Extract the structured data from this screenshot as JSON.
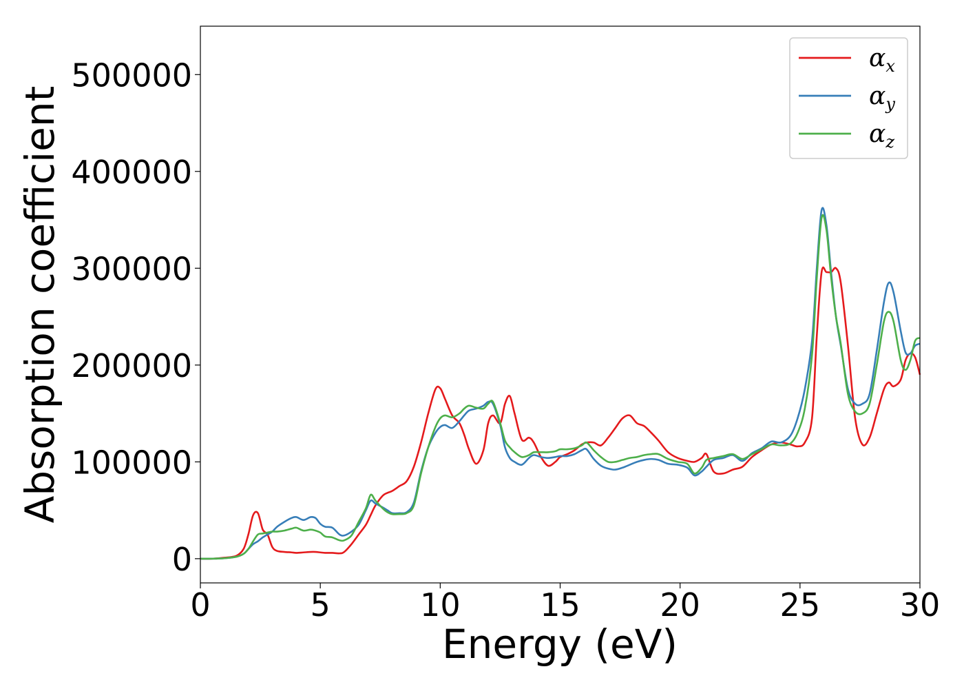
{
  "chart_data": {
    "type": "line",
    "xlabel": "Energy (eV)",
    "ylabel": "Absorption coefficient",
    "xlim": [
      0,
      30
    ],
    "ylim": [
      -25000,
      550000
    ],
    "xticks": [
      0,
      5,
      10,
      15,
      20,
      25,
      30
    ],
    "yticks": [
      0,
      100000,
      200000,
      300000,
      400000,
      500000
    ],
    "grid": false,
    "legend_position": "top-right",
    "x": [
      0,
      0.5,
      1,
      1.5,
      1.8,
      2,
      2.2,
      2.4,
      2.6,
      2.8,
      3,
      3.2,
      3.5,
      3.8,
      4,
      4.3,
      4.6,
      4.8,
      5,
      5.2,
      5.5,
      5.8,
      6,
      6.3,
      6.6,
      6.9,
      7.1,
      7.3,
      7.6,
      7.8,
      8,
      8.3,
      8.6,
      8.9,
      9.2,
      9.5,
      9.8,
      10,
      10.2,
      10.5,
      10.8,
      11,
      11.2,
      11.5,
      11.8,
      12,
      12.2,
      12.5,
      12.7,
      12.9,
      13.1,
      13.4,
      13.7,
      13.9,
      14.2,
      14.5,
      14.8,
      15,
      15.3,
      15.6,
      15.9,
      16.1,
      16.4,
      16.7,
      17,
      17.3,
      17.6,
      17.9,
      18.2,
      18.5,
      18.8,
      19.1,
      19.5,
      19.9,
      20.3,
      20.6,
      20.9,
      21.1,
      21.4,
      21.8,
      22.2,
      22.6,
      23,
      23.4,
      23.8,
      24.2,
      24.6,
      24.9,
      25.2,
      25.5,
      25.7,
      25.9,
      26.1,
      26.3,
      26.5,
      26.7,
      27,
      27.3,
      27.6,
      27.9,
      28.2,
      28.5,
      28.7,
      28.9,
      29.2,
      29.4,
      29.6,
      29.8,
      30
    ],
    "series": [
      {
        "name": "α_x",
        "color": "#e41a1c",
        "values": [
          0,
          0,
          1000,
          3000,
          10000,
          25000,
          45000,
          47000,
          30000,
          25000,
          12000,
          8000,
          7000,
          6500,
          6000,
          6500,
          7000,
          7000,
          6500,
          6000,
          6000,
          5500,
          7000,
          15000,
          25000,
          35000,
          45000,
          55000,
          65000,
          68000,
          70000,
          75000,
          80000,
          95000,
          120000,
          150000,
          175000,
          176000,
          165000,
          148000,
          140000,
          128000,
          113000,
          98000,
          112000,
          140000,
          148000,
          140000,
          160000,
          168000,
          150000,
          123000,
          125000,
          120000,
          105000,
          96000,
          100000,
          105000,
          108000,
          112000,
          118000,
          120000,
          120000,
          117000,
          125000,
          135000,
          145000,
          148000,
          140000,
          137000,
          130000,
          122000,
          110000,
          104000,
          101000,
          100000,
          104000,
          108000,
          90000,
          88000,
          92000,
          95000,
          105000,
          112000,
          118000,
          120000,
          118000,
          116000,
          120000,
          145000,
          230000,
          296000,
          296000,
          296000,
          300000,
          285000,
          220000,
          145000,
          118000,
          125000,
          150000,
          175000,
          182000,
          178000,
          185000,
          205000,
          212000,
          208000,
          190000
        ]
      },
      {
        "name": "α_y",
        "color": "#377eb8",
        "values": [
          0,
          0,
          500,
          2000,
          5000,
          10000,
          15000,
          18000,
          22000,
          25000,
          28000,
          33000,
          38000,
          42000,
          43000,
          40000,
          43000,
          42000,
          36000,
          33000,
          32000,
          25000,
          24000,
          28000,
          35000,
          50000,
          60000,
          57000,
          53000,
          50000,
          47000,
          47000,
          48000,
          58000,
          90000,
          115000,
          130000,
          136000,
          138000,
          135000,
          142000,
          148000,
          153000,
          155000,
          158000,
          162000,
          160000,
          138000,
          115000,
          104000,
          100000,
          97000,
          104000,
          107000,
          105000,
          104000,
          105000,
          106000,
          106000,
          108000,
          112000,
          113000,
          103000,
          96000,
          93000,
          92000,
          94000,
          97000,
          100000,
          102000,
          103000,
          102000,
          98000,
          97000,
          94000,
          86000,
          90000,
          95000,
          102000,
          104000,
          107000,
          101000,
          109000,
          114000,
          121000,
          120000,
          127000,
          145000,
          175000,
          225000,
          300000,
          360000,
          345000,
          295000,
          250000,
          220000,
          175000,
          160000,
          160000,
          170000,
          215000,
          265000,
          285000,
          275000,
          235000,
          213000,
          212000,
          220000,
          222000
        ]
      },
      {
        "name": "α_z",
        "color": "#4daf4a",
        "values": [
          0,
          0,
          500,
          2000,
          5000,
          10000,
          18000,
          25000,
          26000,
          27000,
          28000,
          28000,
          29000,
          31000,
          32000,
          29000,
          30000,
          29000,
          27000,
          23000,
          22000,
          19000,
          19000,
          24000,
          38000,
          52000,
          66000,
          60000,
          52000,
          48000,
          46000,
          46000,
          47000,
          55000,
          88000,
          115000,
          136000,
          145000,
          148000,
          146000,
          150000,
          155000,
          158000,
          156000,
          155000,
          160000,
          162000,
          140000,
          122000,
          115000,
          110000,
          105000,
          107000,
          110000,
          110000,
          110000,
          111000,
          113000,
          113000,
          114000,
          117000,
          120000,
          112000,
          105000,
          100000,
          100000,
          102000,
          104000,
          105000,
          107000,
          108000,
          108000,
          103000,
          100000,
          98000,
          88000,
          94000,
          102000,
          104000,
          106000,
          108000,
          103000,
          108000,
          113000,
          118000,
          117000,
          119000,
          130000,
          155000,
          210000,
          290000,
          352000,
          340000,
          290000,
          250000,
          222000,
          170000,
          152000,
          150000,
          160000,
          200000,
          245000,
          255000,
          245000,
          205000,
          195000,
          205000,
          225000,
          228000
        ]
      }
    ]
  }
}
